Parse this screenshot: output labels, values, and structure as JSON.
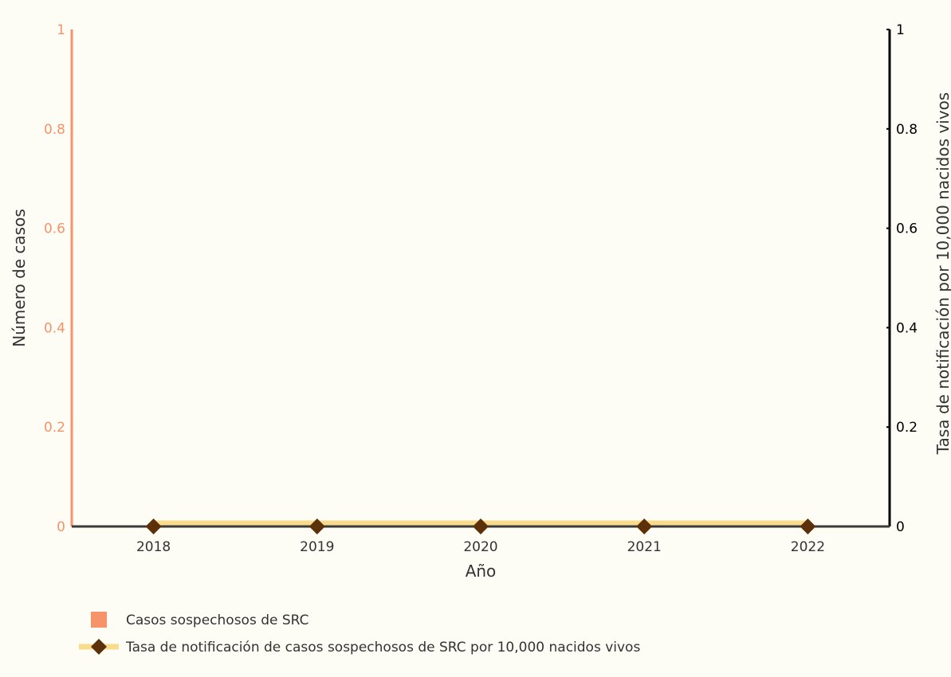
{
  "chart_data": {
    "type": "bar+line",
    "categories": [
      "2018",
      "2019",
      "2020",
      "2021",
      "2022"
    ],
    "series": [
      {
        "name": "Casos sospechosos de SRC",
        "type": "bar",
        "axis": "left",
        "values": [
          0,
          0,
          0,
          0,
          0
        ],
        "color": "#f6936a"
      },
      {
        "name": "Tasa de notificación de casos sospechosos de SRC por 10,000 nacidos vivos",
        "type": "line",
        "axis": "right",
        "values": [
          0,
          0,
          0,
          0,
          0
        ],
        "line_color": "#f8dc8c",
        "marker_color": "#5c3008",
        "marker": "diamond"
      }
    ],
    "xlabel": "Año",
    "ylabel_left": "Número de casos",
    "ylabel_right": "Tasa de notificación por 10,000 nacidos vivos",
    "ylim_left": [
      0,
      1
    ],
    "ylim_right": [
      0,
      1
    ],
    "yticks_left": [
      "0",
      "0.2",
      "0.4",
      "0.6",
      "0.8",
      "1"
    ],
    "yticks_right": [
      "0",
      "0.2",
      "0.4",
      "0.6",
      "0.8",
      "1"
    ],
    "left_axis_color": "#f6936a",
    "right_axis_color": "#000000",
    "background": "#fdfcf5",
    "grid": false,
    "legend_position": "bottom-left"
  }
}
